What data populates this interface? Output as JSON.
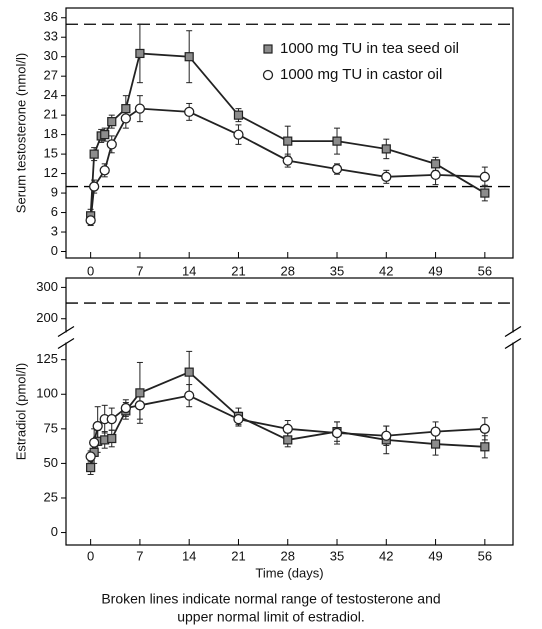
{
  "chart_data": [
    {
      "type": "line",
      "y_label": "Serum testosterone (nmol/l)",
      "xlim": [
        -3.5,
        60
      ],
      "xticks": [
        0,
        7,
        14,
        21,
        28,
        35,
        42,
        49,
        56
      ],
      "ylim": [
        -1,
        37.5
      ],
      "yticks": [
        0,
        3,
        6,
        9,
        12,
        15,
        18,
        21,
        24,
        27,
        30,
        33,
        36
      ],
      "reference_lines": [
        35,
        10
      ],
      "legend": "upper right",
      "line_color": "#222222",
      "series": [
        {
          "name": "1000 mg TU in tea seed oil",
          "marker": "square",
          "color": "#8c8c8c",
          "x": [
            0,
            0.5,
            1.5,
            2,
            3,
            5,
            7,
            14,
            21,
            28,
            35,
            42,
            49,
            56
          ],
          "values": [
            5.5,
            15,
            17.8,
            18,
            20,
            22,
            30.5,
            30,
            21,
            17,
            17,
            15.8,
            13.5,
            9
          ],
          "errors": [
            1,
            1,
            1,
            1,
            1,
            2,
            4.5,
            4,
            1,
            2.3,
            2,
            1.5,
            1,
            1.2
          ]
        },
        {
          "name": "1000 mg TU in  castor oil",
          "marker": "circle",
          "color": "#ffffff",
          "x": [
            0,
            0.5,
            2,
            3,
            5,
            7,
            14,
            21,
            28,
            35,
            42,
            49,
            56
          ],
          "values": [
            4.8,
            10,
            12.5,
            16.5,
            20.5,
            22,
            21.5,
            18,
            14,
            12.7,
            11.5,
            11.8,
            11.5
          ],
          "errors": [
            0.8,
            1,
            1,
            1.3,
            1.5,
            2,
            1.3,
            1.5,
            1,
            0.8,
            1,
            1.5,
            1.5
          ]
        }
      ]
    },
    {
      "type": "line",
      "y_label": "Estradiol (pmol/l)",
      "x_label": "Time (days)",
      "xlim": [
        -3.5,
        60
      ],
      "xticks": [
        0,
        7,
        14,
        21,
        28,
        35,
        42,
        49,
        56
      ],
      "ylim": [
        -9,
        132
      ],
      "yticks": [
        0,
        25,
        50,
        75,
        100,
        125
      ],
      "ylim_upper": [
        180,
        330
      ],
      "yticks_upper": [
        200,
        300
      ],
      "reference_lines": [
        250
      ],
      "line_color": "#222222",
      "series": [
        {
          "name": "1000 mg TU in tea seed oil",
          "marker": "square",
          "color": "#8c8c8c",
          "x": [
            0,
            0.5,
            1,
            2,
            3,
            5,
            7,
            14,
            21,
            28,
            35,
            42,
            49,
            56
          ],
          "values": [
            47,
            58,
            66,
            67,
            68,
            88,
            101,
            116,
            84,
            67,
            73,
            67,
            64,
            62
          ],
          "errors": [
            5,
            8,
            8,
            6,
            6,
            6,
            22,
            15,
            6,
            5,
            7,
            10,
            8,
            8
          ]
        },
        {
          "name": "1000 mg TU in  castor oil",
          "marker": "circle",
          "color": "#ffffff",
          "x": [
            0,
            0.5,
            1,
            2,
            3,
            5,
            7,
            14,
            21,
            28,
            35,
            42,
            49,
            56
          ],
          "values": [
            55,
            65,
            77,
            82,
            82,
            90,
            92,
            99,
            82,
            75,
            72,
            70,
            73,
            75
          ],
          "errors": [
            4,
            10,
            14,
            10,
            8,
            6,
            10,
            8,
            5,
            6,
            8,
            7,
            7,
            8
          ]
        }
      ]
    }
  ],
  "caption": [
    "Broken lines indicate normal range of testosterone and",
    "upper normal limit of estradiol."
  ]
}
